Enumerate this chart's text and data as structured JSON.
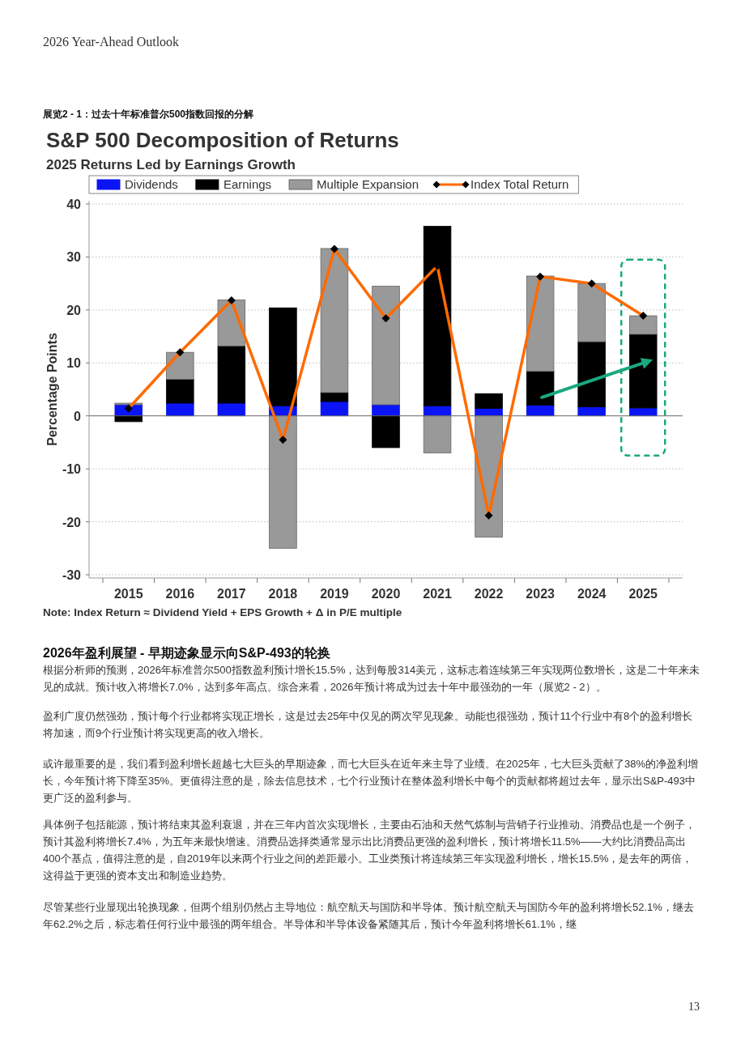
{
  "chart_data": {
    "type": "bar",
    "title": "S&P 500 Decomposition of Returns",
    "subtitle": "2025 Returns Led by Earnings Growth",
    "ylabel": "Percentage Points",
    "categories": [
      "2015",
      "2016",
      "2017",
      "2018",
      "2019",
      "2020",
      "2021",
      "2022",
      "2023",
      "2024",
      "2025"
    ],
    "stacked": true,
    "series": [
      {
        "name": "Dividends",
        "color": "#0a14f5",
        "values": [
          2.1,
          2.4,
          2.4,
          1.9,
          2.7,
          2.1,
          1.9,
          1.4,
          2.0,
          1.7,
          1.5
        ]
      },
      {
        "name": "Earnings",
        "color": "#000000",
        "values": [
          -1.1,
          4.5,
          10.8,
          18.5,
          1.7,
          -6.0,
          33.9,
          2.8,
          6.4,
          12.3,
          13.9
        ]
      },
      {
        "name": "Multiple Expansion",
        "color": "#999999",
        "values": [
          0.3,
          5.1,
          8.7,
          -25.0,
          27.2,
          22.4,
          -7.0,
          -22.9,
          18.0,
          11.0,
          3.5
        ]
      },
      {
        "name": "Index Total Return",
        "type": "line",
        "color": "#ff6a00",
        "values": [
          1.4,
          12.0,
          21.8,
          -4.5,
          31.5,
          18.4,
          28.3,
          -18.8,
          26.3,
          25.0,
          18.9
        ]
      }
    ],
    "marker": "diamond",
    "ylim": [
      -30,
      40
    ],
    "yticks": [
      -30,
      -20,
      -10,
      0,
      10,
      20,
      30,
      40
    ],
    "grid": "y",
    "legend": "top",
    "annotations": [
      "2026 Year-Ahead Outlook",
      "展览2 - 1：过去十年标准普尔500指数回报的分解",
      "Note: Index Return ≈ Dividend Yield + EPS Growth + Δ in P/E multiple",
      "2026年盈利展望 - 早期迹象显示向S&P-493的轮换",
      "根据分析师的预测，2026年标准普尔500指数盈利预计增长15.5%，达到每股314美元，这标志着连续第三年实现两位数增长，这是二十年来未见的成就。预计收入将增长7.0%，达到多年高点。综合来看，2026年预计将成为过去十年中最强劲的一年（展览2 - 2）。",
      "盈利广度仍然强劲，预计每个行业都将实现正增长，这是过去25年中仅见的两次罕见现象。动能也很强劲，预计11个行业中有8个的盈利增长将加速，而9个行业预计将实现更高的收入增长。",
      "或许最重要的是，我们看到盈利增长超越七大巨头的早期迹象，而七大巨头在近年来主导了业绩。在2025年，七大巨头贡献了38%的净盈利增长，今年预计将下降至35%。更值得注意的是，除去信息技术，七个行业预计在整体盈利增长中每个的贡献都将超过去年，显示出S&P-493中更广泛的盈利参与。",
      "具体例子包括能源，预计将结束其盈利衰退，并在三年内首次实现增长，主要由石油和天然气炼制与营销子行业推动。消费品也是一个例子，预计其盈利将增长7.4%，为五年来最快增速。消费品选择类通常显示出比消费品更强的盈利增长，预计将增长11.5%——大约比消费品高出400个基点，值得注意的是，自2019年以来两个行业之间的差距最小。工业类预计将连续第三年实现盈利增长，增长15.5%，是去年的两倍，这得益于更强的资本支出和制造业趋势。",
      "尽管某些行业显现出轮换现象，但两个组别仍然占主导地位：航空航天与国防和半导体。预计航空航天与国防今年的盈利将增长52.1%，继去年62.2%之后，标志着任何行业中最强的两年组合。半导体和半导体设备紧随其后，预计今年盈利将增长61.1%，继",
      "13"
    ]
  }
}
